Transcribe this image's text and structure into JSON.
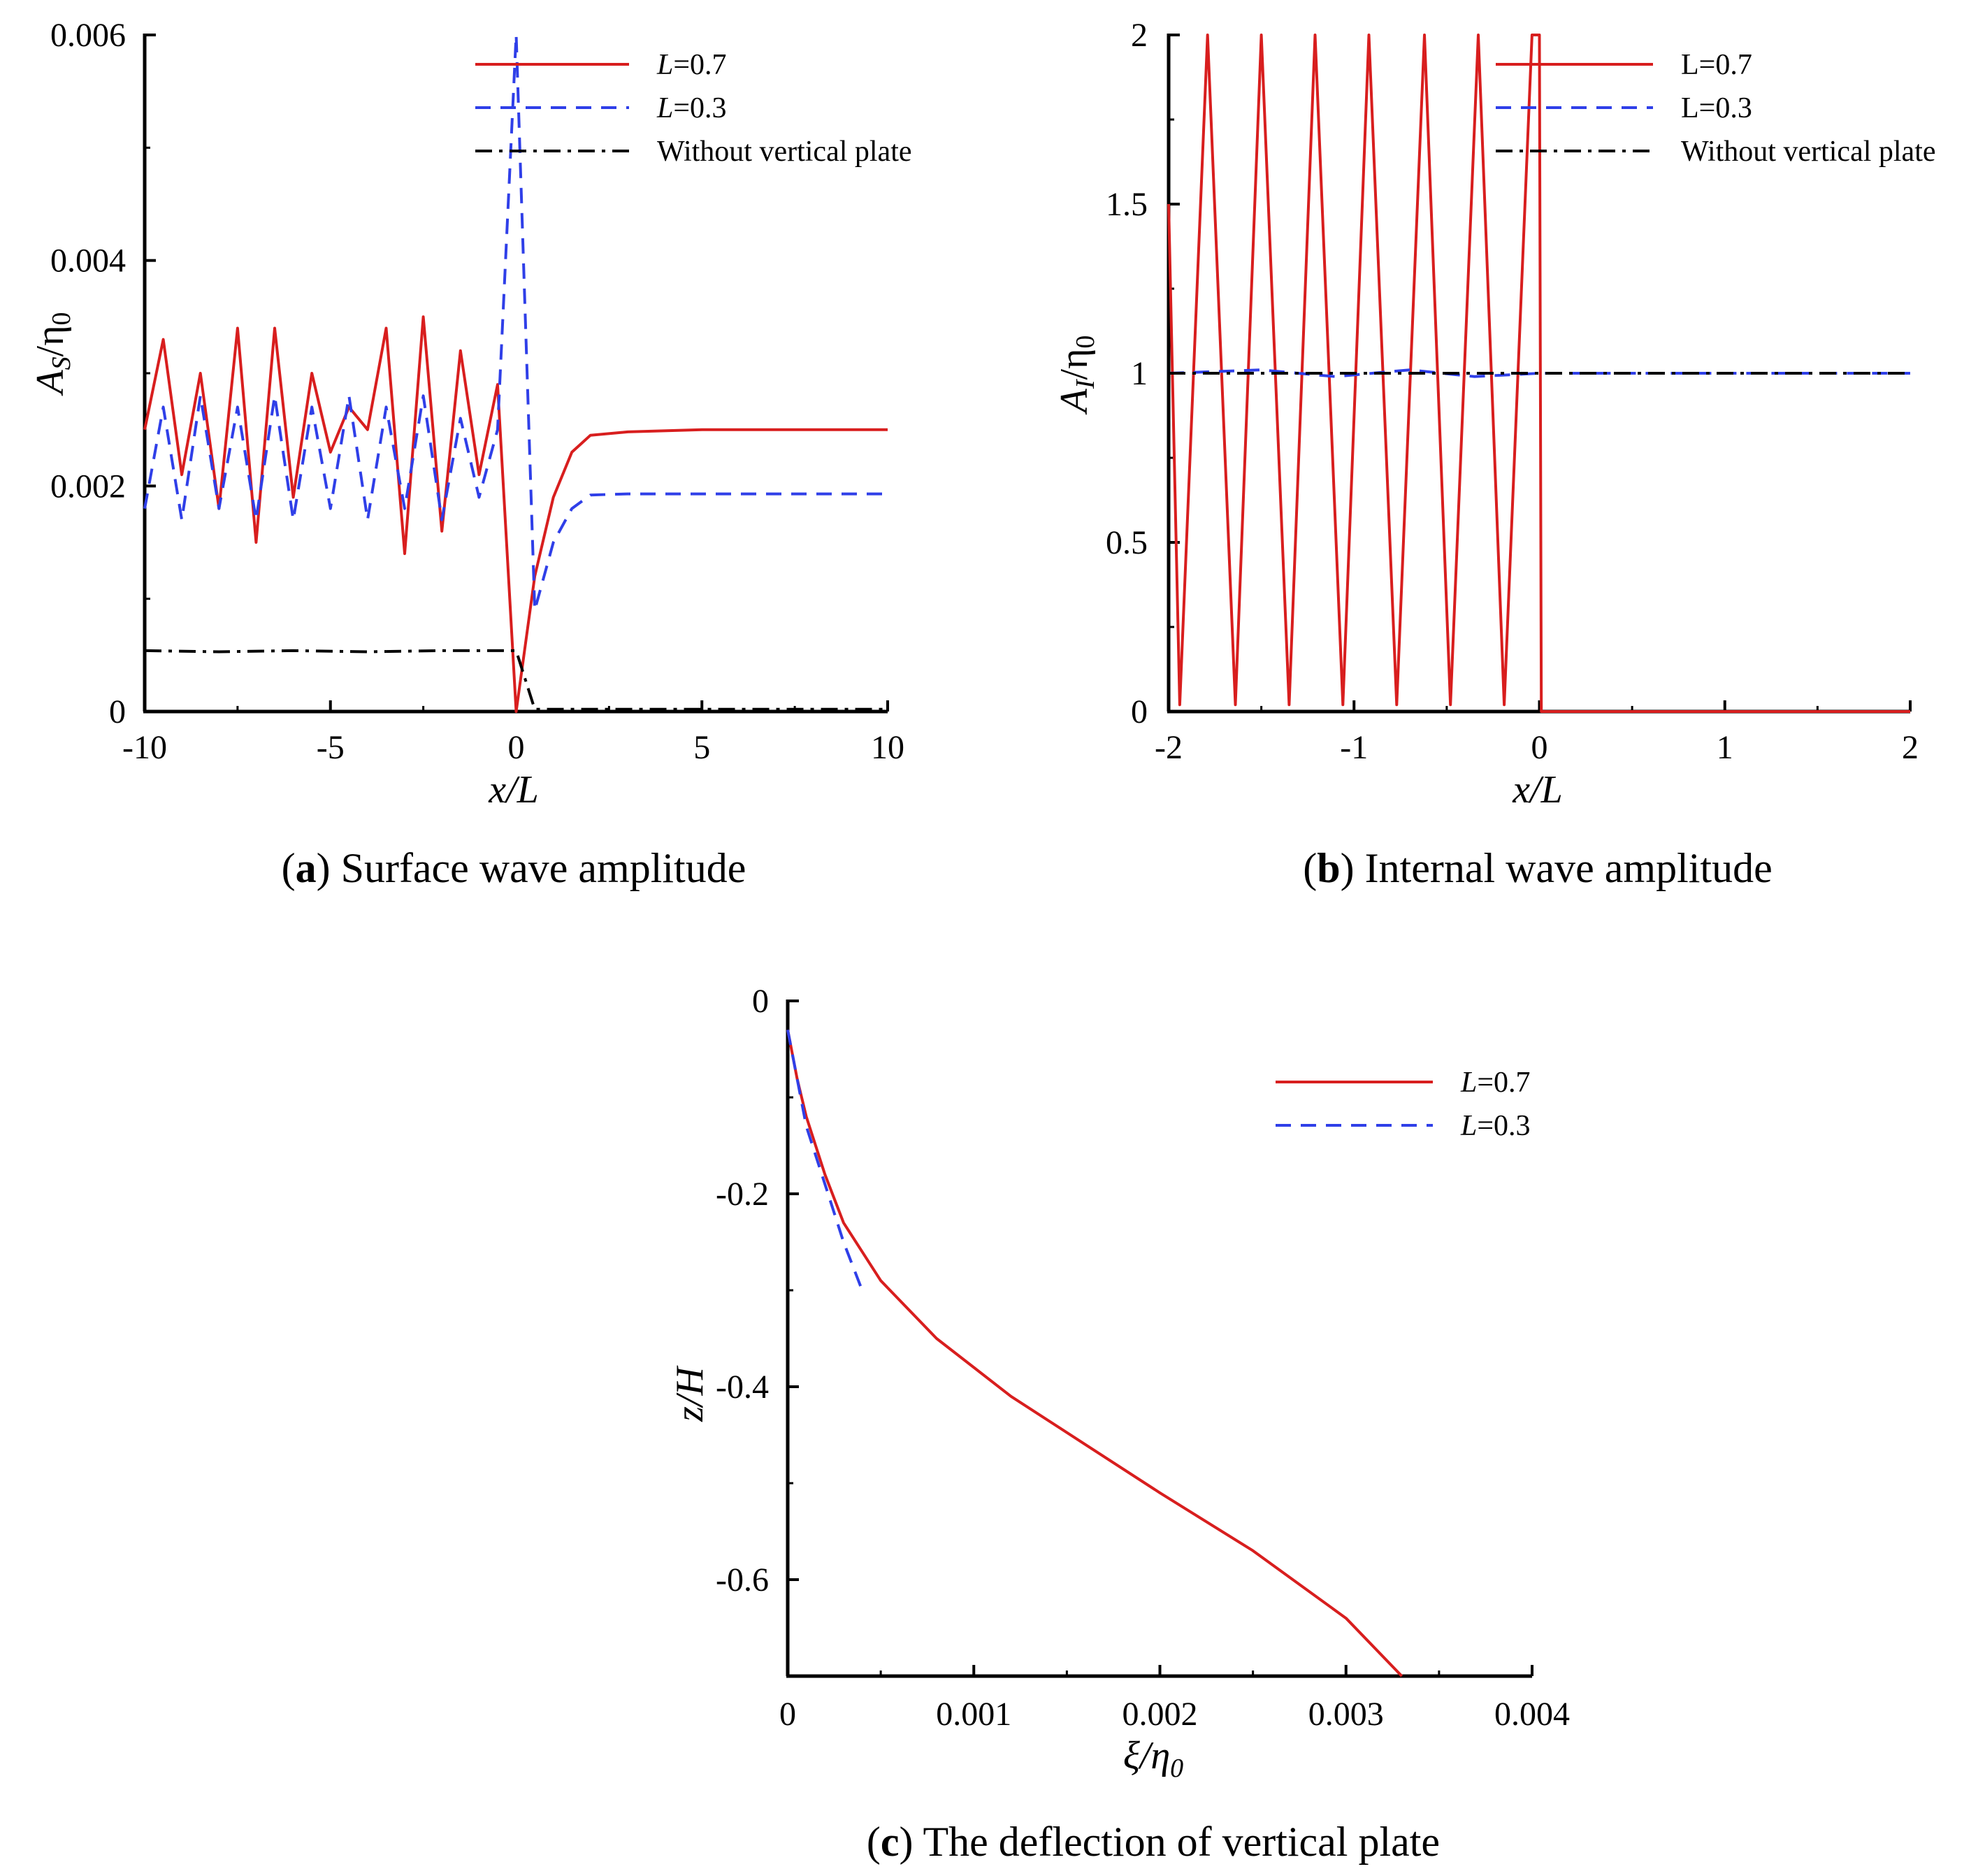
{
  "figure": {
    "captions": {
      "a_letter": "a",
      "a_text": "Surface wave amplitude",
      "b_letter": "b",
      "b_text": "Internal wave amplitude",
      "c_letter": "c",
      "c_text": "The deflection of vertical plate"
    }
  },
  "chart_data": [
    {
      "id": "a",
      "type": "line",
      "title": "Surface wave amplitude",
      "xlabel": "x/L",
      "ylabel": "A_S/η_0",
      "ylabel_main": "A",
      "ylabel_sub": "S",
      "ylabel_rest": "/η",
      "ylabel_sub2": "0",
      "xlim": [
        -10,
        10
      ],
      "ylim": [
        0,
        0.006
      ],
      "xticks": [
        -10,
        -5,
        0,
        5,
        10
      ],
      "xtick_labels": [
        "-10",
        "-5",
        "0",
        "5",
        "10"
      ],
      "yticks": [
        0,
        0.002,
        0.004,
        0.006
      ],
      "ytick_labels": [
        "0",
        "0.002",
        "0.004",
        "0.006"
      ],
      "legend_position": "top-right",
      "series": [
        {
          "name": "L=0.7",
          "legend_prefix": "L",
          "legend_suffix": "=0.7",
          "italic_prefix": true,
          "color": "#d81e1e",
          "dash": "solid",
          "x": [
            -10,
            -9.5,
            -9,
            -8.5,
            -8,
            -7.5,
            -7,
            -6.5,
            -6,
            -5.5,
            -5,
            -4.5,
            -4,
            -3.5,
            -3,
            -2.5,
            -2,
            -1.5,
            -1,
            -0.5,
            0,
            0.5,
            1,
            1.5,
            2,
            3,
            5,
            10
          ],
          "values": [
            0.0025,
            0.0033,
            0.0021,
            0.003,
            0.0018,
            0.0034,
            0.0015,
            0.0034,
            0.0019,
            0.003,
            0.0023,
            0.0027,
            0.0025,
            0.0034,
            0.0014,
            0.0035,
            0.0016,
            0.0032,
            0.0021,
            0.0029,
            0.0,
            0.0012,
            0.0019,
            0.0023,
            0.00245,
            0.00248,
            0.0025,
            0.0025
          ]
        },
        {
          "name": "L=0.3",
          "legend_prefix": "L",
          "legend_suffix": "=0.3",
          "italic_prefix": true,
          "color": "#2f3fe8",
          "dash": "dashed",
          "x": [
            -10,
            -9.5,
            -9,
            -8.5,
            -8,
            -7.5,
            -7,
            -6.5,
            -6,
            -5.5,
            -5,
            -4.5,
            -4,
            -3.5,
            -3,
            -2.5,
            -2,
            -1.5,
            -1,
            -0.5,
            0,
            0.5,
            1,
            1.5,
            2,
            3,
            5,
            10
          ],
          "values": [
            0.0018,
            0.0027,
            0.0017,
            0.0028,
            0.0018,
            0.0027,
            0.0017,
            0.0028,
            0.0017,
            0.0027,
            0.0018,
            0.0028,
            0.0017,
            0.0027,
            0.0018,
            0.0028,
            0.0017,
            0.0026,
            0.0019,
            0.0025,
            0.006,
            0.0009,
            0.0015,
            0.0018,
            0.00192,
            0.00193,
            0.00193,
            0.00193
          ]
        },
        {
          "name": "Without vertical plate",
          "legend_prefix": "",
          "legend_suffix": "Without vertical plate",
          "italic_prefix": false,
          "color": "#000000",
          "dash": "dashdot",
          "x": [
            -10,
            -8,
            -6,
            -4,
            -2,
            0,
            0.5,
            10
          ],
          "values": [
            0.00054,
            0.00053,
            0.00054,
            0.00053,
            0.00054,
            0.00054,
            2e-05,
            2e-05
          ]
        }
      ]
    },
    {
      "id": "b",
      "type": "line",
      "title": "Internal wave amplitude",
      "xlabel": "x/L",
      "ylabel": "A_I/η_0",
      "ylabel_main": "A",
      "ylabel_sub": "I",
      "ylabel_rest": "/η",
      "ylabel_sub2": "0",
      "xlim": [
        -2,
        2
      ],
      "ylim": [
        0,
        2
      ],
      "xticks": [
        -2,
        -1,
        0,
        1,
        2
      ],
      "xtick_labels": [
        "-2",
        "-1",
        "0",
        "1",
        "2"
      ],
      "yticks": [
        0,
        0.5,
        1,
        1.5,
        2
      ],
      "ytick_labels": [
        "0",
        "0.5",
        "1",
        "1.5",
        "2"
      ],
      "legend_position": "top-right",
      "series": [
        {
          "name": "L=0.7",
          "legend_prefix": "L",
          "legend_suffix": "=0.7",
          "italic_prefix": false,
          "color": "#d81e1e",
          "dash": "solid",
          "x": [
            -2,
            -1.94,
            -1.79,
            -1.64,
            -1.5,
            -1.35,
            -1.21,
            -1.06,
            -0.92,
            -0.77,
            -0.62,
            -0.48,
            -0.33,
            -0.19,
            -0.04,
            0,
            0.01,
            2
          ],
          "values": [
            1.5,
            0.02,
            2.0,
            0.02,
            2.0,
            0.02,
            2.0,
            0.02,
            2.0,
            0.02,
            2.0,
            0.02,
            2.0,
            0.02,
            2.0,
            2.0,
            0.0,
            0.0
          ]
        },
        {
          "name": "L=0.3",
          "legend_prefix": "L",
          "legend_suffix": "=0.3",
          "italic_prefix": false,
          "color": "#2f3fe8",
          "dash": "dashed",
          "x": [
            -2,
            -1.5,
            -1.1,
            -0.7,
            -0.35,
            0,
            0.5,
            1,
            2
          ],
          "values": [
            1.0,
            1.01,
            0.99,
            1.01,
            0.99,
            1.0,
            1.0,
            1.0,
            1.0
          ]
        },
        {
          "name": "Without vertical plate",
          "legend_prefix": "",
          "legend_suffix": "Without vertical plate",
          "italic_prefix": false,
          "color": "#000000",
          "dash": "dashdot",
          "x": [
            -2,
            2
          ],
          "values": [
            1.0,
            1.0
          ]
        }
      ]
    },
    {
      "id": "c",
      "type": "line",
      "title": "The deflection of vertical plate",
      "xlabel": "ξ/η_0",
      "xlabel_main": "ξ/η",
      "xlabel_sub": "0",
      "ylabel": "z/H",
      "xlim": [
        0,
        0.004
      ],
      "ylim": [
        -0.7,
        0
      ],
      "xticks": [
        0,
        0.001,
        0.002,
        0.003,
        0.004
      ],
      "xtick_labels": [
        "0",
        "0.001",
        "0.002",
        "0.003",
        "0.004"
      ],
      "yticks": [
        0,
        -0.2,
        -0.4,
        -0.6
      ],
      "ytick_labels": [
        "0",
        "-0.2",
        "-0.4",
        "-0.6"
      ],
      "legend_position": "top-right",
      "series": [
        {
          "name": "L=0.7",
          "legend_prefix": "L",
          "legend_suffix": "=0.7",
          "italic_prefix": true,
          "color": "#d81e1e",
          "dash": "solid",
          "x": [
            0,
            5e-05,
            0.0001,
            0.0002,
            0.0003,
            0.0005,
            0.0008,
            0.0012,
            0.0016,
            0.002,
            0.0025,
            0.003,
            0.0033
          ],
          "values": [
            -0.03,
            -0.08,
            -0.12,
            -0.18,
            -0.23,
            -0.29,
            -0.35,
            -0.41,
            -0.46,
            -0.51,
            -0.57,
            -0.64,
            -0.7
          ]
        },
        {
          "name": "L=0.3",
          "legend_prefix": "L",
          "legend_suffix": "=0.3",
          "italic_prefix": true,
          "color": "#2f3fe8",
          "dash": "dashed",
          "x": [
            0,
            5e-05,
            0.0001,
            0.0002,
            0.0003,
            0.0004
          ],
          "values": [
            -0.03,
            -0.08,
            -0.13,
            -0.19,
            -0.25,
            -0.3
          ]
        }
      ]
    }
  ]
}
